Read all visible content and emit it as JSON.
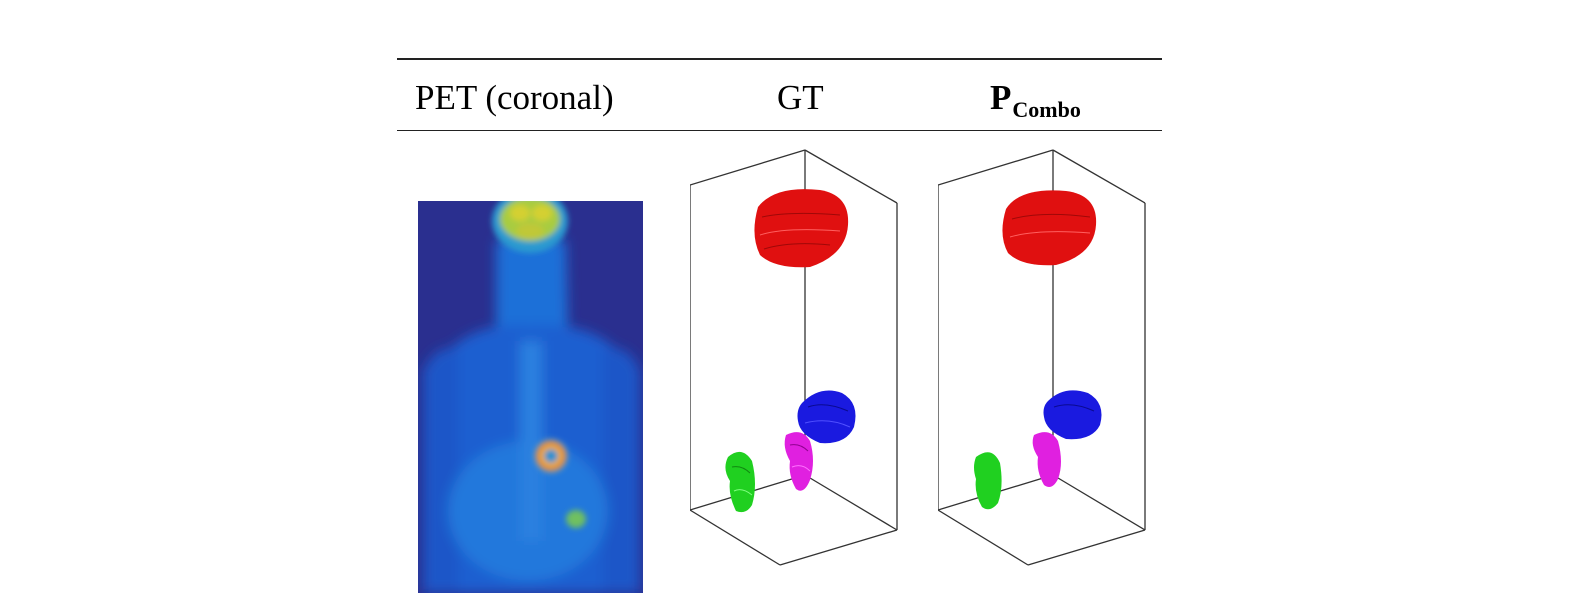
{
  "header": {
    "col1": "PET (coronal)",
    "col2": "GT",
    "col3_main": "P",
    "col3_sub": "Combo"
  },
  "colors": {
    "rule": "#222222",
    "pet_background": "#2a2f8f",
    "organ_top": "#e01010",
    "organ_right_mid": "#1a1ae0",
    "organ_center": "#e020e0",
    "organ_left": "#20d020"
  },
  "panels": {
    "pet": "PET coronal image",
    "gt": "Ground-truth 3D segmentation",
    "pred": "Predicted 3D segmentation"
  }
}
